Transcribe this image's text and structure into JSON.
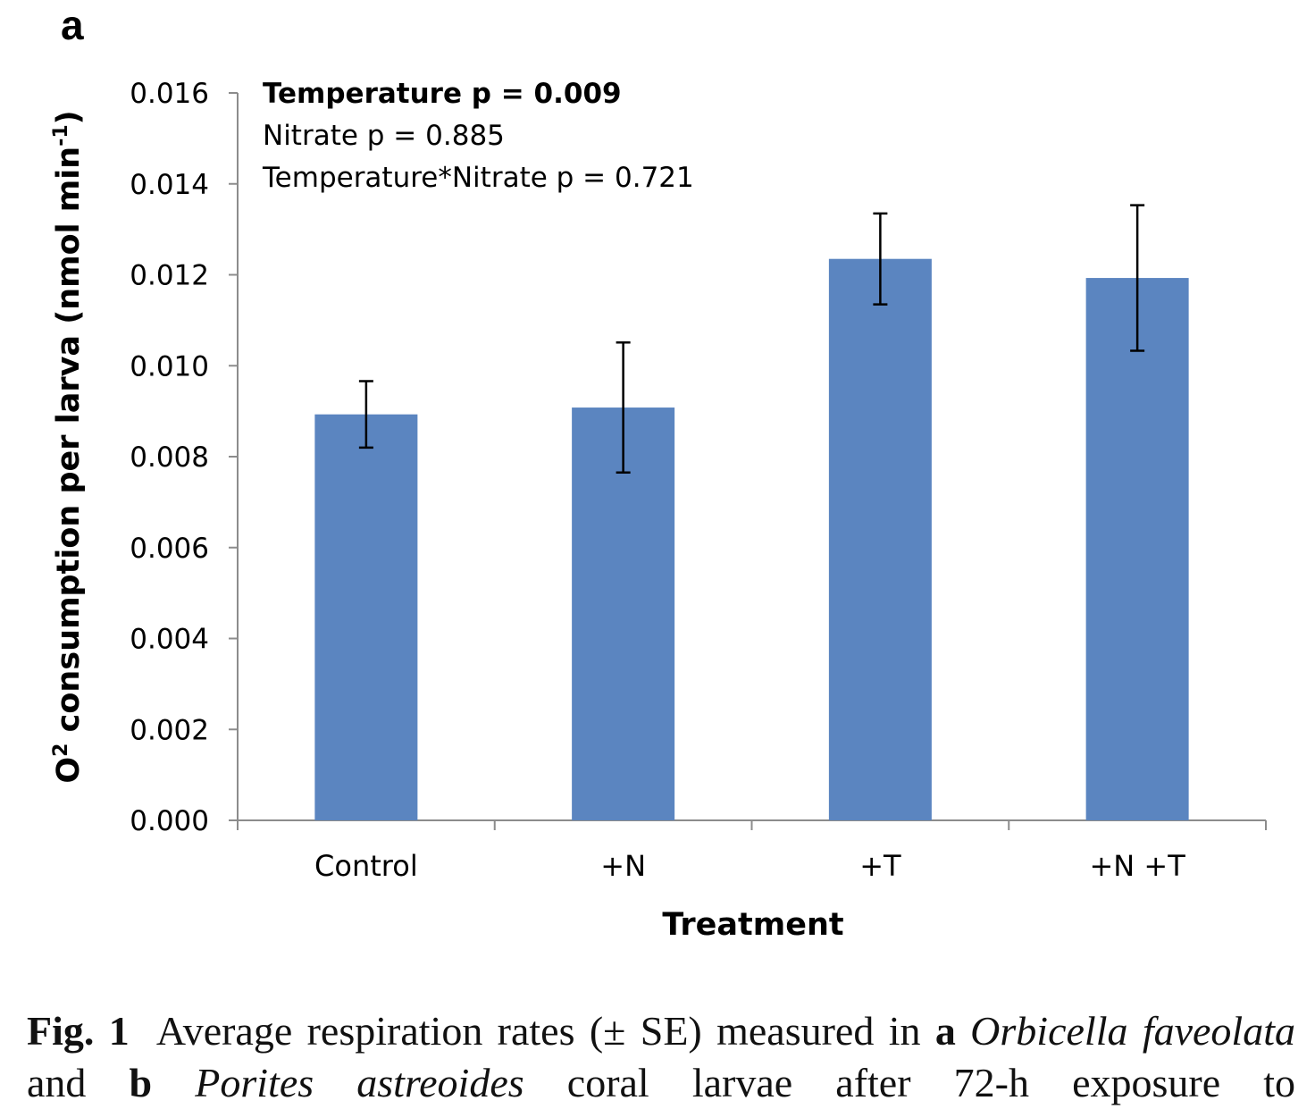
{
  "panel_label": "a",
  "chart_data": {
    "type": "bar",
    "categories": [
      "Control",
      "+N",
      "+T",
      "+N +T"
    ],
    "values": [
      0.00893,
      0.00908,
      0.01235,
      0.01193
    ],
    "errors": [
      0.00073,
      0.00143,
      0.001,
      0.0016
    ],
    "ylim": [
      0,
      0.016
    ],
    "yticks": [
      "0.000",
      "0.002",
      "0.004",
      "0.006",
      "0.008",
      "0.010",
      "0.012",
      "0.014",
      "0.016"
    ],
    "xlabel": "Treatment",
    "ylabel_parts": [
      "O",
      "2",
      " consumption per larva (nmol min",
      "-1",
      ")"
    ],
    "bar_color": "#5b85c0",
    "annotations": [
      "Temperature p = 0.009",
      "Nitrate p = 0.885",
      "Temperature*Nitrate p = 0.721"
    ]
  },
  "caption": {
    "fig": "Fig. 1",
    "text1": "Average respiration rates (± SE) measured in",
    "a": "a",
    "species1": "Orbicella",
    "species1b": "faveolata",
    "and": "and",
    "b": "b",
    "species2": "Porites astreoides",
    "text2": "coral larvae after 72-h exposure to"
  }
}
